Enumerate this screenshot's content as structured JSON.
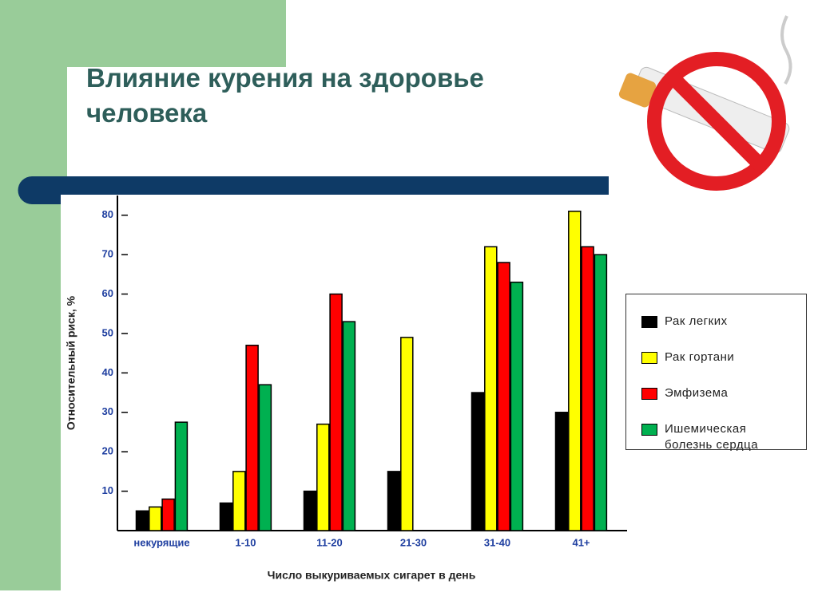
{
  "title": "Влияние курения на здоровье человека",
  "chart_data": {
    "type": "bar",
    "x_label": "Число выкуриваемых сигарет в день",
    "y_label": "Относительный риск, %",
    "categories": [
      "некурящие",
      "1-10",
      "11-20",
      "21-30",
      "31-40",
      "41+"
    ],
    "series": [
      {
        "name": "Рак легких",
        "color": "#000000",
        "values": [
          5,
          7,
          10,
          15,
          35,
          30
        ]
      },
      {
        "name": "Рак гортани",
        "color": "#ffff00",
        "values": [
          6,
          15,
          27,
          49,
          72,
          81
        ]
      },
      {
        "name": "Эмфизема",
        "color": "#ff0000",
        "values": [
          8,
          47,
          60,
          null,
          68,
          72
        ]
      },
      {
        "name": "Ишемическая болезнь сердца",
        "color": "#00b050",
        "values": [
          27.5,
          37,
          53,
          null,
          63,
          70
        ]
      }
    ],
    "ylim": [
      0,
      85
    ],
    "yticks": [
      10,
      20,
      30,
      40,
      50,
      60,
      70,
      80
    ],
    "grid": false
  }
}
